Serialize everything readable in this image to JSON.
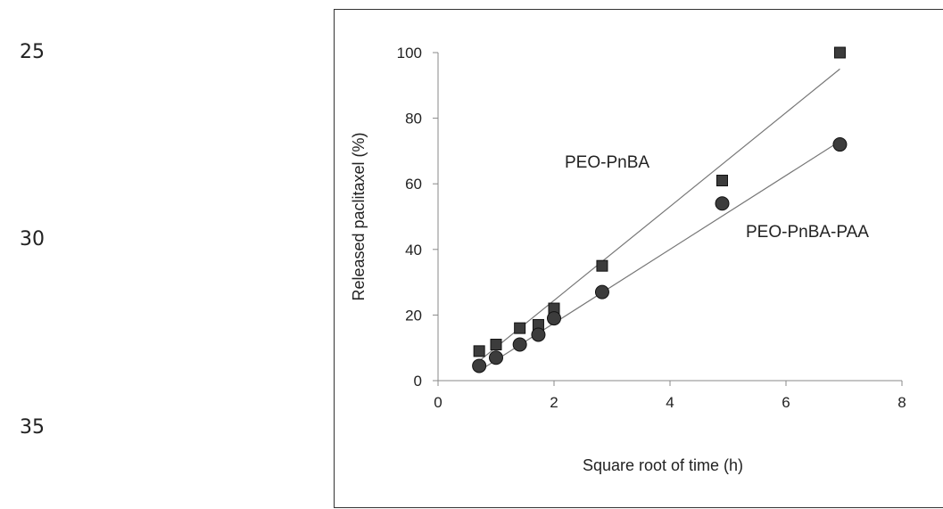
{
  "margin_line_numbers": [
    "25",
    "30",
    "35"
  ],
  "chart_data": {
    "type": "scatter",
    "title": "",
    "xlabel": "Square root of time (h)",
    "ylabel": "Released paclitaxel (%)",
    "xlim": [
      0,
      8
    ],
    "ylim": [
      0,
      100
    ],
    "xticks": [
      0,
      2,
      4,
      6,
      8
    ],
    "yticks": [
      0,
      20,
      40,
      60,
      80,
      100
    ],
    "grid": false,
    "series": [
      {
        "name": "PEO-PnBA",
        "marker": "square",
        "color": "#3c3c3c",
        "x": [
          0.71,
          1.0,
          1.41,
          1.73,
          2.0,
          2.83,
          4.9,
          6.93
        ],
        "y": [
          9,
          11,
          16,
          17,
          22,
          35,
          61,
          100
        ],
        "trendline": {
          "x": [
            0.71,
            6.93
          ],
          "y": [
            6,
            95
          ]
        }
      },
      {
        "name": "PEO-PnBA-PAA",
        "marker": "circle",
        "color": "#3c3c3c",
        "x": [
          0.71,
          1.0,
          1.41,
          1.73,
          2.0,
          2.83,
          4.9,
          6.93
        ],
        "y": [
          4.5,
          7,
          11,
          14,
          19,
          27,
          54,
          72
        ],
        "trendline": {
          "x": [
            0.71,
            6.93
          ],
          "y": [
            3,
            73
          ]
        }
      }
    ]
  }
}
